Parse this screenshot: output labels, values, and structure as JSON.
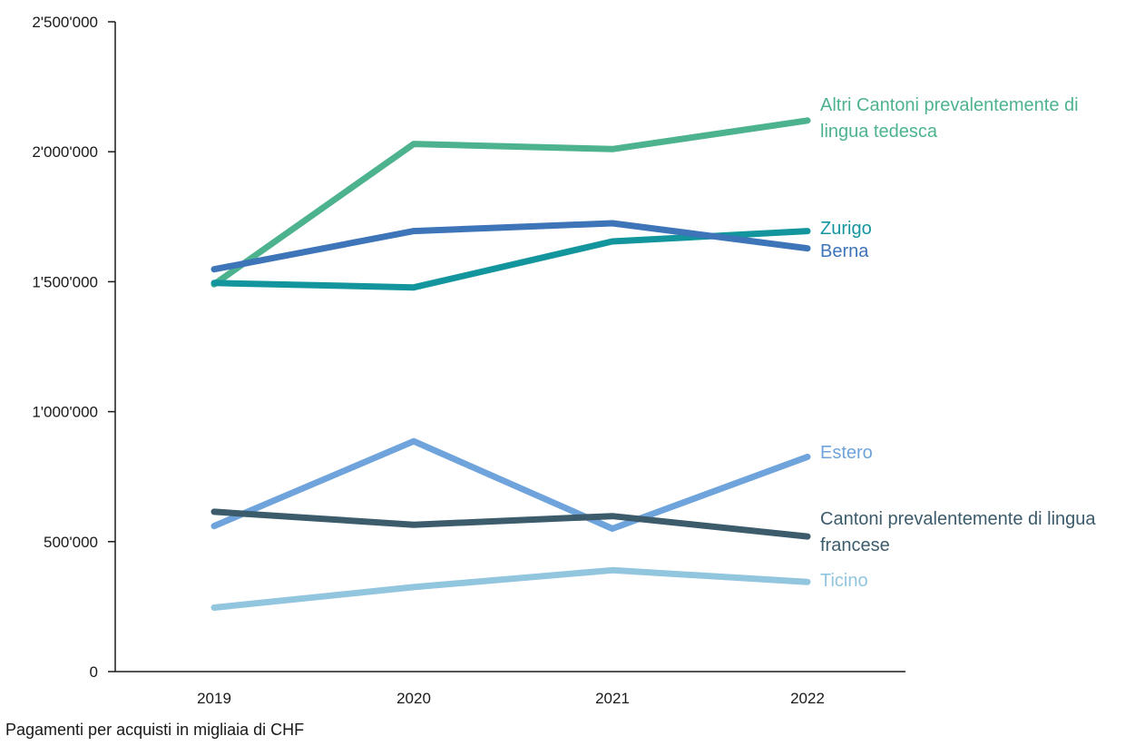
{
  "chart_data": {
    "type": "line",
    "title": "",
    "xlabel": "",
    "ylabel": "",
    "x": [
      "2019",
      "2020",
      "2021",
      "2022"
    ],
    "ylim": [
      0,
      2500000
    ],
    "yticks": [
      0,
      500000,
      1000000,
      1500000,
      2000000,
      2500000
    ],
    "ytick_labels": [
      "0",
      "500'000",
      "1'000'000",
      "1'500'000",
      "2'000'000",
      "2'500'000"
    ],
    "grid": false,
    "legend": "direct labels at line ends",
    "series": [
      {
        "name": "Altri Cantoni prevalentemente di lingua tedesca",
        "label_lines": [
          "Altri Cantoni prevalentemente di",
          "lingua tedesca"
        ],
        "values": [
          1490000,
          2030000,
          2010000,
          2120000
        ],
        "color": "#4db38e"
      },
      {
        "name": "Zurigo",
        "label_lines": [
          "Zurigo"
        ],
        "values": [
          1495000,
          1478000,
          1655000,
          1695000
        ],
        "color": "#13959e"
      },
      {
        "name": "Berna",
        "label_lines": [
          "Berna"
        ],
        "values": [
          1548000,
          1695000,
          1725000,
          1628000
        ],
        "color": "#3e74b8"
      },
      {
        "name": "Estero",
        "label_lines": [
          "Estero"
        ],
        "values": [
          560000,
          886000,
          550000,
          826000
        ],
        "color": "#6fa3db"
      },
      {
        "name": "Cantoni prevalentemente di lingua francese",
        "label_lines": [
          "Cantoni prevalentemente di lingua",
          "francese"
        ],
        "values": [
          615000,
          565000,
          598000,
          520000
        ],
        "color": "#3c5b6b"
      },
      {
        "name": "Ticino",
        "label_lines": [
          "Ticino"
        ],
        "values": [
          246000,
          325000,
          390000,
          345000
        ],
        "color": "#92c6de"
      }
    ]
  },
  "note": "Pagamenti per acquisti in migliaia di CHF"
}
